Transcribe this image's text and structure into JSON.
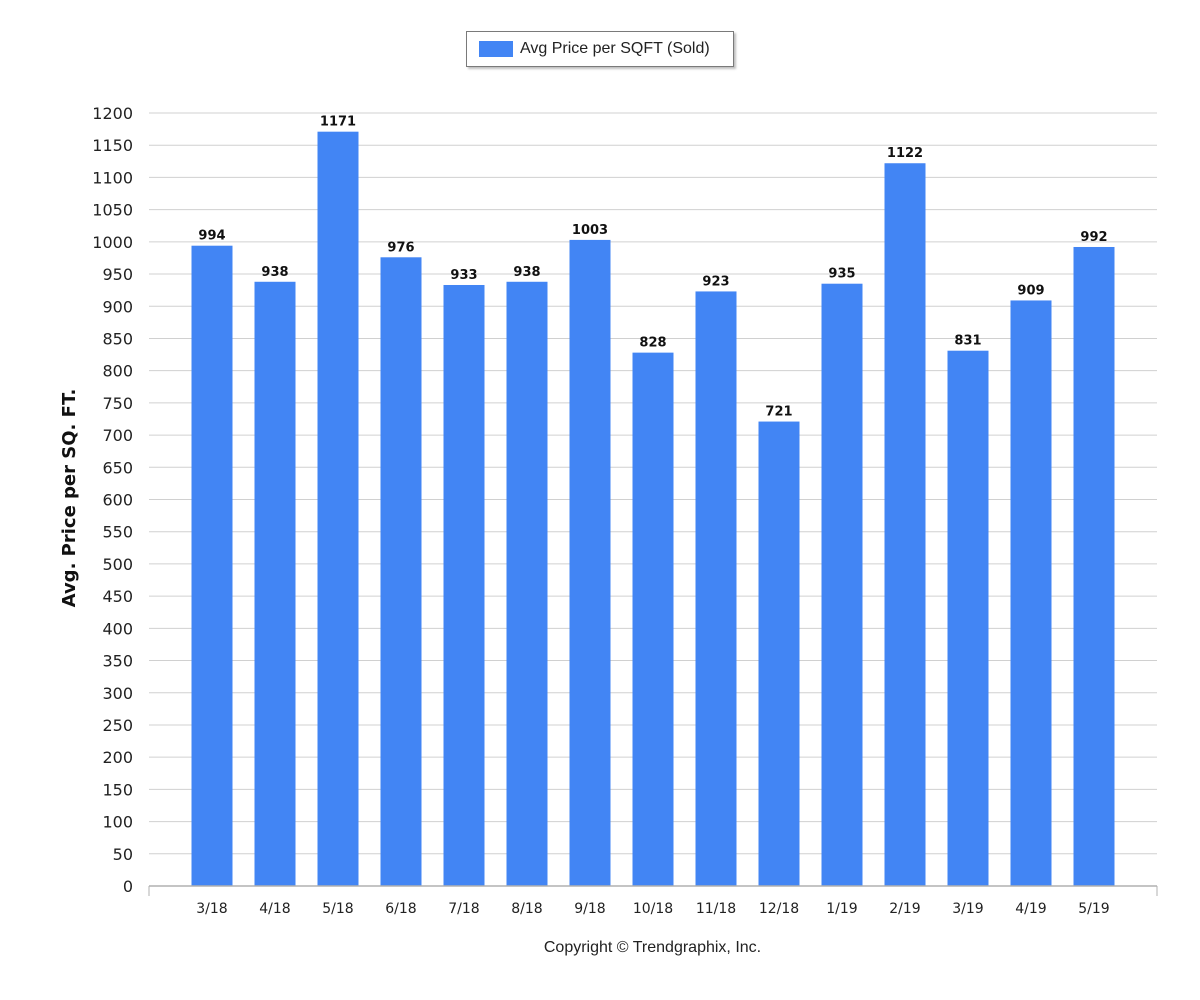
{
  "legend": {
    "label": "Avg Price per SQFT (Sold)"
  },
  "footer": {
    "copyright": "Copyright © Trendgraphix, Inc."
  },
  "colors": {
    "bar": "#4285f4",
    "grid": "#d0d0d0",
    "axis": "#b0b0b0"
  },
  "chart_data": {
    "type": "bar",
    "categories": [
      "3/18",
      "4/18",
      "5/18",
      "6/18",
      "7/18",
      "8/18",
      "9/18",
      "10/18",
      "11/18",
      "12/18",
      "1/19",
      "2/19",
      "3/19",
      "4/19",
      "5/19"
    ],
    "series": [
      {
        "name": "Avg Price per SQFT (Sold)",
        "values": [
          994,
          938,
          1171,
          976,
          933,
          938,
          1003,
          828,
          923,
          721,
          935,
          1122,
          831,
          909,
          992
        ]
      }
    ],
    "ylabel": "Avg. Price per SQ. FT.",
    "ylim": [
      0,
      1200
    ],
    "yticks": [
      0,
      50,
      100,
      150,
      200,
      250,
      300,
      350,
      400,
      450,
      500,
      550,
      600,
      650,
      700,
      750,
      800,
      850,
      900,
      950,
      1000,
      1050,
      1100,
      1150,
      1200
    ],
    "grid": true,
    "legend_position": "top-center",
    "data_labels": true
  }
}
